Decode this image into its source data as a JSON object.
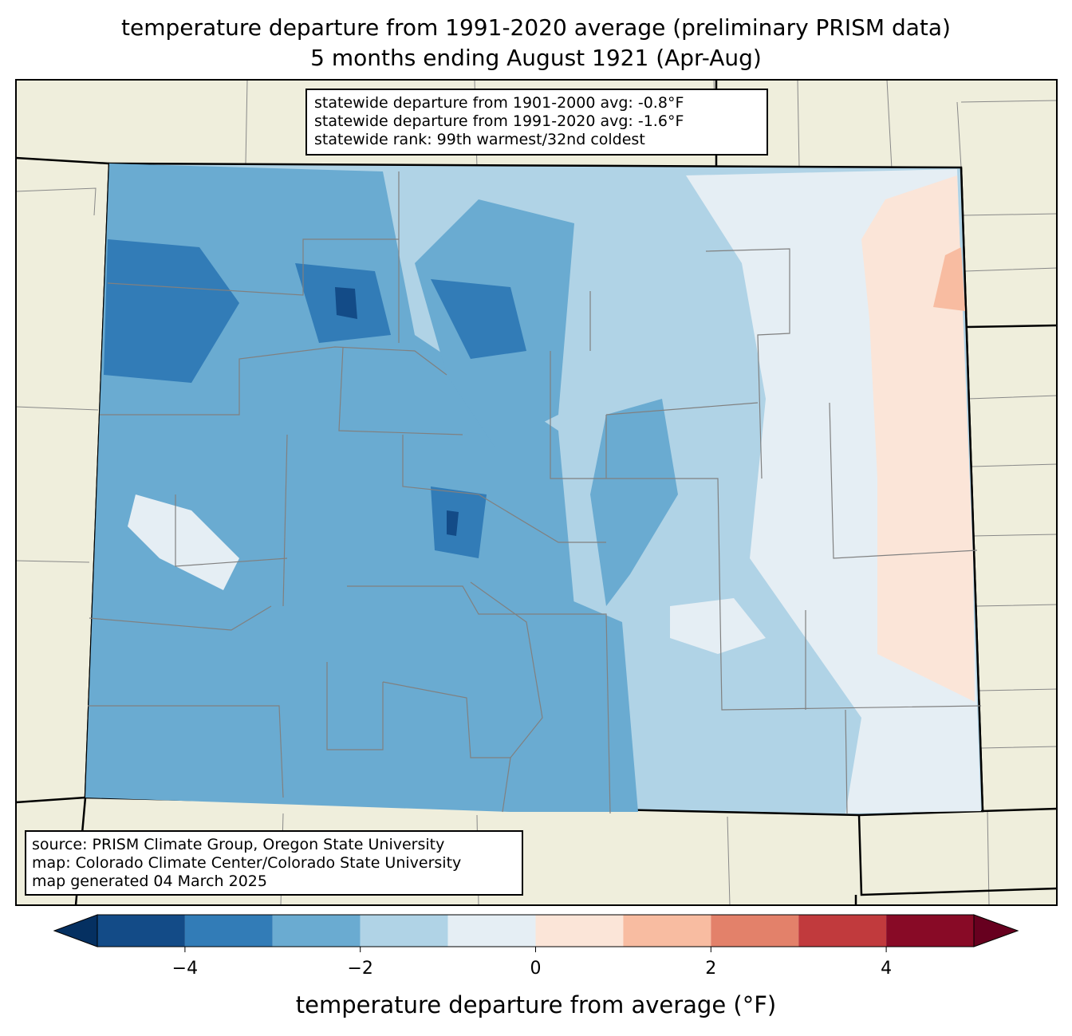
{
  "title": {
    "line1": "temperature departure from 1991-2020 average (preliminary PRISM data)",
    "line2": "5 months ending August 1921 (Apr-Aug)"
  },
  "stats_box": {
    "line1": "statewide departure from 1901-2000 avg: -0.8°F",
    "line2": "statewide departure from 1991-2020 avg: -1.6°F",
    "line3": "statewide rank: 99th warmest/32nd coldest"
  },
  "source_box": {
    "line1": "source: PRISM Climate Group, Oregon State University",
    "line2": "map: Colorado Climate Center/Colorado State University",
    "line3": "map generated 04 March 2025"
  },
  "colorbar": {
    "label": "temperature departure from average (°F)",
    "bounds": [
      -5,
      -4,
      -3,
      -2,
      -1,
      0,
      1,
      2,
      3,
      4,
      5
    ],
    "ticks": [
      "−4",
      "−2",
      "0",
      "2",
      "4"
    ],
    "tick_values": [
      -4,
      -2,
      0,
      2,
      4
    ],
    "colors": [
      "#134b87",
      "#327cb7",
      "#6aabd1",
      "#b0d3e6",
      "#e5eef4",
      "#fbe5d8",
      "#f8bca1",
      "#e3816a",
      "#c13a3d",
      "#880a26"
    ],
    "under_color": "#053061",
    "over_color": "#67001f"
  },
  "map_colors": {
    "land": "#efeedc",
    "border": "#000000",
    "county": "#808080"
  }
}
